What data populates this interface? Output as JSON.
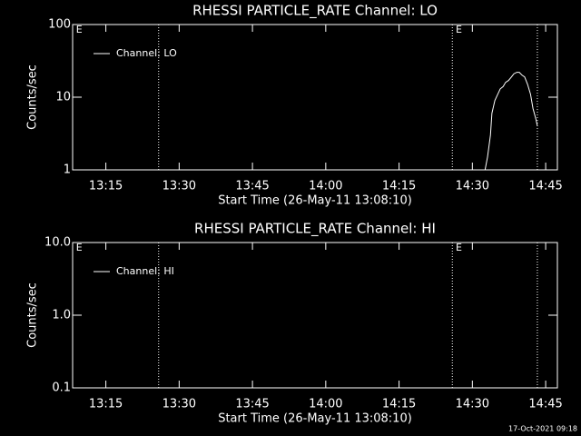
{
  "chart_data": [
    {
      "type": "line",
      "title": "RHESSI PARTICLE_RATE Channel: LO",
      "xlabel": "Start Time (26-May-11 13:08:10)",
      "ylabel": "Counts/sec",
      "log_y": true,
      "ylim": [
        1,
        100
      ],
      "yticks": [
        1,
        10,
        100
      ],
      "xlim": [
        788.2,
        887.4
      ],
      "xticks": [
        {
          "value": 795,
          "label": "13:15"
        },
        {
          "value": 810,
          "label": "13:30"
        },
        {
          "value": 825,
          "label": "13:45"
        },
        {
          "value": 840,
          "label": "14:00"
        },
        {
          "value": 855,
          "label": "14:15"
        },
        {
          "value": 870,
          "label": "14:30"
        },
        {
          "value": 885,
          "label": "14:45"
        }
      ],
      "markers": [
        805.8,
        865.9,
        883.3
      ],
      "flags": [
        {
          "x": 788.9,
          "label": "E"
        },
        {
          "x": 866.6,
          "label": "E"
        }
      ],
      "legend": "upper left",
      "series": [
        {
          "name": "Channel: LO",
          "color": "#ffffff",
          "x": [
            872.6,
            873.1,
            873.7,
            874.0,
            874.6,
            875.2,
            875.7,
            876.3,
            876.8,
            877.4,
            878.0,
            878.5,
            879.1,
            879.6,
            880.2,
            880.7,
            881.3,
            881.9,
            882.4,
            883.0,
            883.3
          ],
          "values": [
            1.0,
            1.5,
            3,
            6,
            9,
            11,
            13,
            14,
            16,
            17,
            19,
            21,
            22,
            22,
            20,
            19,
            15,
            11,
            7,
            5,
            4
          ]
        }
      ]
    },
    {
      "type": "line",
      "title": "RHESSI PARTICLE_RATE Channel: HI",
      "xlabel": "Start Time (26-May-11 13:08:10)",
      "ylabel": "Counts/sec",
      "log_y": true,
      "ylim": [
        0.1,
        10
      ],
      "yticks": [
        0.1,
        {
          "value": 1,
          "label": "1.0"
        },
        {
          "value": 10,
          "label": "10.0"
        }
      ],
      "xlim": [
        788.2,
        887.4
      ],
      "xticks": [
        {
          "value": 795,
          "label": "13:15"
        },
        {
          "value": 810,
          "label": "13:30"
        },
        {
          "value": 825,
          "label": "13:45"
        },
        {
          "value": 840,
          "label": "14:00"
        },
        {
          "value": 855,
          "label": "14:15"
        },
        {
          "value": 870,
          "label": "14:30"
        },
        {
          "value": 885,
          "label": "14:45"
        }
      ],
      "markers": [
        805.8,
        865.9,
        883.3
      ],
      "flags": [
        {
          "x": 788.9,
          "label": "E"
        },
        {
          "x": 866.6,
          "label": "E"
        }
      ],
      "legend": "upper left",
      "series": [
        {
          "name": "Channel: HI",
          "color": "#ffffff",
          "x": [],
          "values": []
        }
      ]
    }
  ],
  "footer": "17-Oct-2021 09:18"
}
